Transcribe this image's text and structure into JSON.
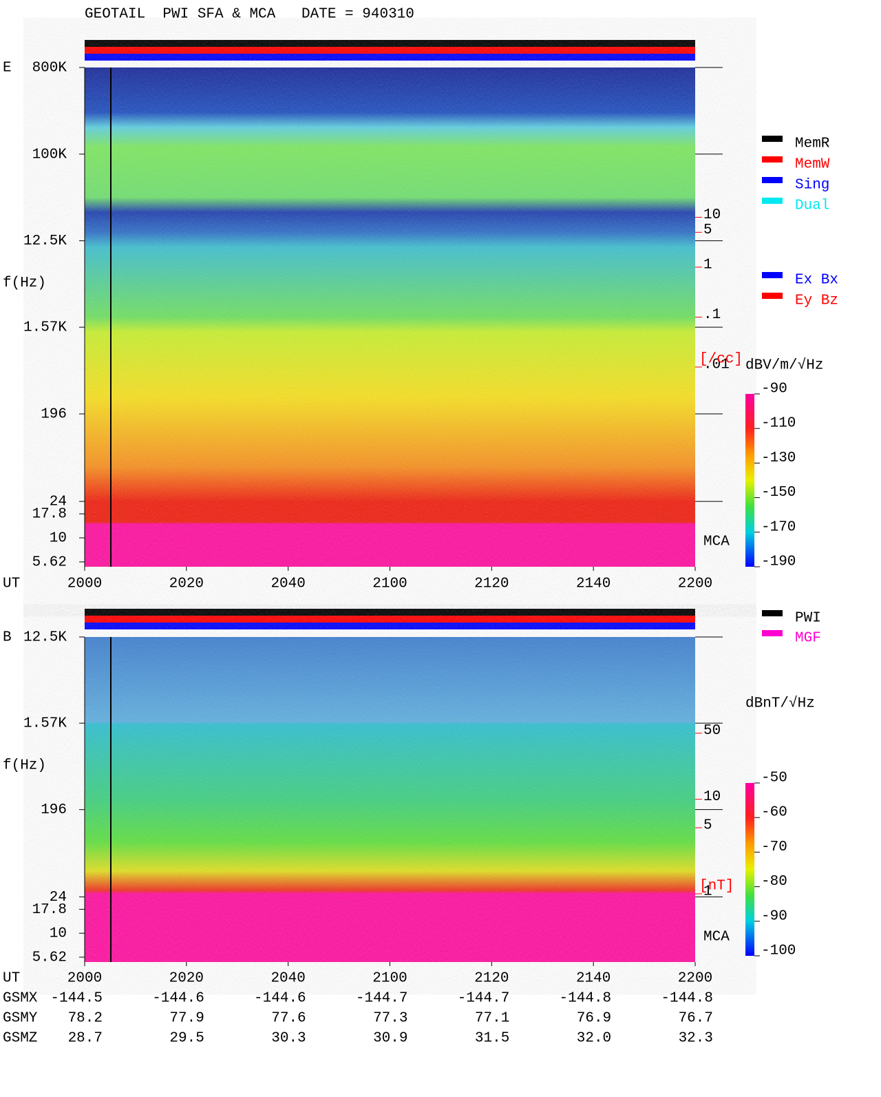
{
  "chart_data": [
    {
      "type": "spectrogram",
      "title": "GEOTAIL  PWI SFA & MCA   DATE = 940310",
      "panel_label": "E",
      "y_label": "f(Hz)",
      "x_label": "UT",
      "log_y": true,
      "ylim": [
        5,
        800000
      ],
      "yticks": [
        {
          "value": 800000,
          "label": "800K"
        },
        {
          "value": 100000,
          "label": "100K"
        },
        {
          "value": 12500,
          "label": "12.5K"
        },
        {
          "value": 1570,
          "label": "1.57K"
        },
        196,
        24,
        17.8,
        10,
        5.62
      ],
      "xlim": [
        0,
        120
      ],
      "xticks": [
        {
          "value": 0,
          "label": "2000"
        },
        {
          "value": 20,
          "label": "2020"
        },
        {
          "value": 40,
          "label": "2040"
        },
        {
          "value": 60,
          "label": "2100"
        },
        {
          "value": 80,
          "label": "2120"
        },
        {
          "value": 100,
          "label": "2140"
        },
        {
          "value": 120,
          "label": "2200"
        }
      ],
      "y2_label": "[/cc]",
      "y2_log": true,
      "y2_color": "#ff0000",
      "y2lim": [
        1e-06,
        10000
      ],
      "y2ticks": [
        10,
        5,
        1,
        {
          "value": 0.1,
          "label": ".1"
        },
        {
          "value": 0.01,
          "label": ".01"
        }
      ],
      "mca_label": "MCA",
      "colorbar": {
        "label": "dBV/m/√Hz",
        "lim": [
          -190,
          -90
        ],
        "ticks": [
          -90,
          -110,
          -130,
          -150,
          -170,
          -190
        ]
      },
      "legends": [
        [
          {
            "name": "MemR",
            "color": "#000000"
          },
          {
            "name": "MemW",
            "color": "#ff0000"
          },
          {
            "name": "Sing",
            "color": "#0000ff"
          },
          {
            "name": "Dual",
            "color": "#00e8f0"
          }
        ],
        [
          {
            "name": "Ex Bx",
            "color": "#0000ff"
          },
          {
            "name": "Ey Bz",
            "color": "#ff0000"
          }
        ]
      ]
    },
    {
      "type": "spectrogram",
      "panel_label": "B",
      "y_label": "f(Hz)",
      "x_label": "UT",
      "log_y": true,
      "ylim": [
        5,
        12500
      ],
      "yticks": [
        {
          "value": 12500,
          "label": "12.5K"
        },
        {
          "value": 1570,
          "label": "1.57K"
        },
        196,
        24,
        17.8,
        10,
        5.62
      ],
      "xlim": [
        0,
        120
      ],
      "xticks": [
        {
          "value": 0,
          "label": "2000"
        },
        {
          "value": 20,
          "label": "2020"
        },
        {
          "value": 40,
          "label": "2040"
        },
        {
          "value": 60,
          "label": "2100"
        },
        {
          "value": 80,
          "label": "2120"
        },
        {
          "value": 100,
          "label": "2140"
        },
        {
          "value": 120,
          "label": "2200"
        }
      ],
      "y2_label": "[nT]",
      "y2_log": true,
      "y2_color": "#ff0000",
      "y2lim": [
        0.19,
        520
      ],
      "y2ticks": [
        50,
        10,
        5,
        1
      ],
      "mca_label": "MCA",
      "colorbar": {
        "label": "dBnT/√Hz",
        "lim": [
          -100,
          -50
        ],
        "ticks": [
          -50,
          -60,
          -70,
          -80,
          -90,
          -100
        ]
      },
      "legends": [
        [
          {
            "name": "PWI",
            "color": "#000000"
          },
          {
            "name": "MGF",
            "color": "#ff00d0"
          }
        ]
      ]
    }
  ],
  "orbit": {
    "rows": [
      {
        "label": "GSMX",
        "values": [
          "-144.5",
          "-144.6",
          "-144.6",
          "-144.7",
          "-144.7",
          "-144.8",
          "-144.8"
        ]
      },
      {
        "label": "GSMY",
        "values": [
          "78.2",
          "77.9",
          "77.6",
          "77.3",
          "77.1",
          "76.9",
          "76.7"
        ]
      },
      {
        "label": "GSMZ",
        "values": [
          "28.7",
          "29.5",
          "30.3",
          "30.9",
          "31.5",
          "32.0",
          "32.3"
        ]
      }
    ]
  }
}
